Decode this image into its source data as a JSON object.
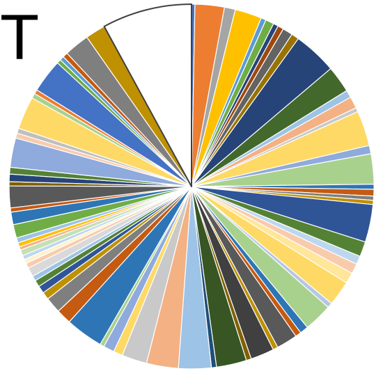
{
  "title_fragment": "T",
  "chart_data": {
    "type": "pie",
    "title": "",
    "start_angle_deg": 0,
    "direction": "clockwise",
    "slices": [
      {
        "value": 0.4,
        "color": "#4472C4"
      },
      {
        "value": 3.5,
        "color": "#ED7D31"
      },
      {
        "value": 1.3,
        "color": "#A5A5A5"
      },
      {
        "value": 3.2,
        "color": "#FFC000"
      },
      {
        "value": 0.6,
        "color": "#5B9BD5"
      },
      {
        "value": 1.0,
        "color": "#70AD47"
      },
      {
        "value": 0.6,
        "color": "#264478"
      },
      {
        "value": 0.7,
        "color": "#9E480E"
      },
      {
        "value": 1.2,
        "color": "#636363"
      },
      {
        "value": 0.9,
        "color": "#997300"
      },
      {
        "value": 5.2,
        "color": "#264478"
      },
      {
        "value": 3.2,
        "color": "#43682B"
      },
      {
        "value": 0.9,
        "color": "#9DC3E6"
      },
      {
        "value": 1.4,
        "color": "#F4B183"
      },
      {
        "value": 0.5,
        "color": "#C9C9C9"
      },
      {
        "value": 4.2,
        "color": "#FFD966"
      },
      {
        "value": 1.0,
        "color": "#8FAADC"
      },
      {
        "value": 3.6,
        "color": "#A9D18E"
      },
      {
        "value": 0.6,
        "color": "#2E75B6"
      },
      {
        "value": 0.8,
        "color": "#C55A11"
      },
      {
        "value": 0.5,
        "color": "#7F7F7F"
      },
      {
        "value": 0.5,
        "color": "#BF9000"
      },
      {
        "value": 4.5,
        "color": "#2F5597"
      },
      {
        "value": 1.8,
        "color": "#548235"
      },
      {
        "value": 1.0,
        "color": "#BDD7EE"
      },
      {
        "value": 1.2,
        "color": "#F8CBAD"
      },
      {
        "value": 1.3,
        "color": "#FFE699"
      },
      {
        "value": 3.0,
        "color": "#FFD966"
      },
      {
        "value": 0.6,
        "color": "#B4C7E7"
      },
      {
        "value": 3.4,
        "color": "#A9D18E"
      },
      {
        "value": 1.0,
        "color": "#2E75B6"
      },
      {
        "value": 0.7,
        "color": "#C55A11"
      },
      {
        "value": 2.5,
        "color": "#595959"
      },
      {
        "value": 0.6,
        "color": "#BF9000"
      },
      {
        "value": 2.8,
        "color": "#404040"
      },
      {
        "value": 0.6,
        "color": "#806000"
      },
      {
        "value": 3.6,
        "color": "#375623"
      },
      {
        "value": 0.6,
        "color": "#1F4E79"
      },
      {
        "value": 3.9,
        "color": "#9DC3E6"
      },
      {
        "value": 3.8,
        "color": "#F4B183"
      },
      {
        "value": 3.0,
        "color": "#C9C9C9"
      },
      {
        "value": 1.1,
        "color": "#FFD966"
      },
      {
        "value": 1.3,
        "color": "#8FAADC"
      },
      {
        "value": 0.5,
        "color": "#A9D18E"
      },
      {
        "value": 4.5,
        "color": "#2E75B6"
      },
      {
        "value": 1.8,
        "color": "#C55A11"
      },
      {
        "value": 1.9,
        "color": "#7F7F7F"
      },
      {
        "value": 0.9,
        "color": "#BF9000"
      },
      {
        "value": 0.9,
        "color": "#2F5597"
      },
      {
        "value": 0.8,
        "color": "#548235"
      },
      {
        "value": 0.6,
        "color": "#9DC3E6"
      },
      {
        "value": 1.1,
        "color": "#D9D9D9"
      },
      {
        "value": 0.6,
        "color": "#F8CBAD"
      },
      {
        "value": 0.5,
        "color": "#FFF2CC"
      },
      {
        "value": 0.5,
        "color": "#BDD7EE"
      },
      {
        "value": 0.7,
        "color": "#C5E0B4"
      },
      {
        "value": 0.4,
        "color": "#F4B183"
      },
      {
        "value": 0.5,
        "color": "#FFC000"
      },
      {
        "value": 0.6,
        "color": "#9DC3E6"
      },
      {
        "value": 1.6,
        "color": "#70AD47"
      },
      {
        "value": 1.5,
        "color": "#2E75B6"
      },
      {
        "value": 0.5,
        "color": "#C55A11"
      },
      {
        "value": 2.6,
        "color": "#595959"
      },
      {
        "value": 0.5,
        "color": "#7F6000"
      },
      {
        "value": 0.9,
        "color": "#264478"
      },
      {
        "value": 0.8,
        "color": "#548235"
      },
      {
        "value": 3.5,
        "color": "#8FAADC"
      },
      {
        "value": 0.6,
        "color": "#F8CBAD"
      },
      {
        "value": 0.6,
        "color": "#BFBFBF"
      },
      {
        "value": 3.9,
        "color": "#FFD966"
      },
      {
        "value": 0.6,
        "color": "#A9D18E"
      },
      {
        "value": 0.5,
        "color": "#ED7D31"
      },
      {
        "value": 4.0,
        "color": "#4472C4"
      },
      {
        "value": 0.5,
        "color": "#70AD47"
      },
      {
        "value": 0.5,
        "color": "#5B9BD5"
      },
      {
        "value": 0.6,
        "color": "#C55A11"
      },
      {
        "value": 3.0,
        "color": "#7F7F7F"
      },
      {
        "value": 2.4,
        "color": "#BF9000"
      },
      {
        "value": 10.7,
        "color": "#FFFFFF",
        "outlined": true
      }
    ]
  }
}
